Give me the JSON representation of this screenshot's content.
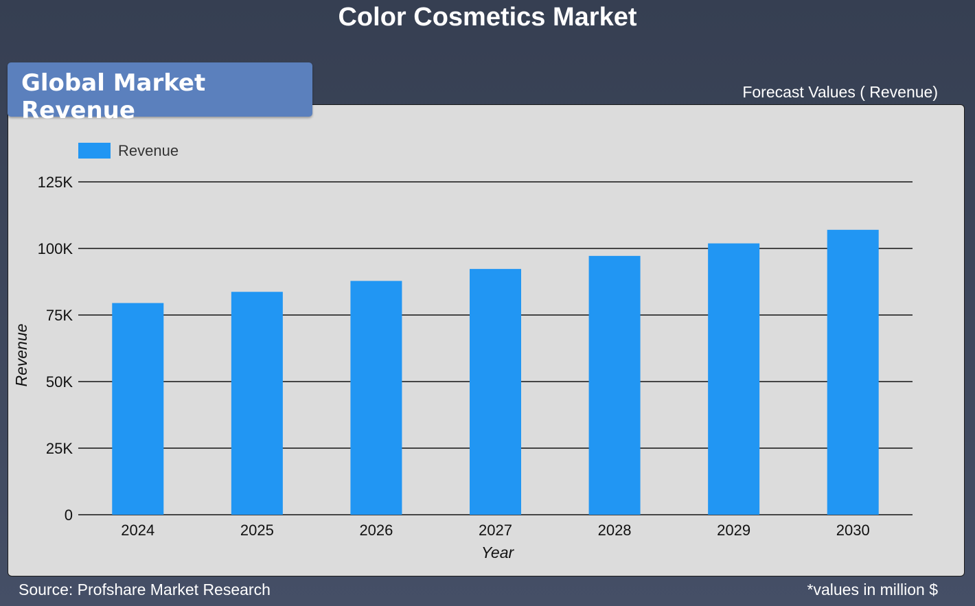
{
  "header": {
    "title": "Color Cosmetics Market"
  },
  "badge": {
    "label": "Global Market Revenue"
  },
  "forecast_label": "Forecast Values ( Revenue)",
  "footer": {
    "source": "Source: Profshare Market Research",
    "note": "*values in million $"
  },
  "colors": {
    "bar": "#2196f3",
    "panel": "#dcdcdc",
    "background": "#3d465c",
    "badge": "#5b80bd"
  },
  "chart_data": {
    "type": "bar",
    "categories": [
      "2024",
      "2025",
      "2026",
      "2027",
      "2028",
      "2029",
      "2030"
    ],
    "series": [
      {
        "name": "Revenue",
        "values": [
          79500,
          83700,
          87800,
          92300,
          97200,
          101900,
          107000
        ]
      }
    ],
    "xlabel": "Year",
    "ylabel": "Revenue",
    "ylim": [
      0,
      125000
    ],
    "yticks": [
      0,
      25000,
      50000,
      75000,
      100000,
      125000
    ],
    "ytick_labels": [
      "0",
      "25K",
      "50K",
      "75K",
      "100K",
      "125K"
    ],
    "legend": "top-left",
    "grid": true
  }
}
